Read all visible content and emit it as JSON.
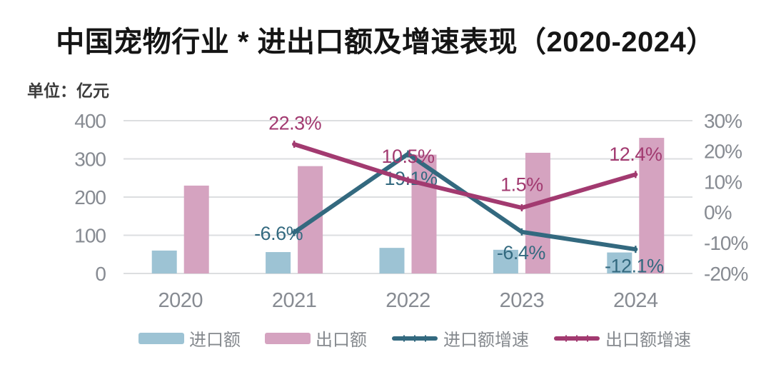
{
  "chart_data": {
    "type": "combo-bar-line",
    "title": "中国宠物行业 * 进出口额及增速表现（2020-2024）",
    "unit_label": "单位：亿元",
    "categories": [
      "2020",
      "2021",
      "2022",
      "2023",
      "2024"
    ],
    "bar_series": [
      {
        "name": "进口额",
        "color": "#9dc3d4",
        "axis": "left",
        "values": [
          60,
          56,
          67,
          62,
          55
        ]
      },
      {
        "name": "出口额",
        "color": "#d5a3c0",
        "axis": "left",
        "values": [
          230,
          281,
          311,
          316,
          355
        ]
      }
    ],
    "line_series": [
      {
        "name": "进口额增速",
        "color": "#33697f",
        "axis": "right",
        "start_index": 1,
        "values": [
          -6.6,
          19.1,
          -6.4,
          -12.1
        ],
        "labels": [
          "-6.6%",
          "19.1%",
          "-6.4%",
          "-12.1%"
        ]
      },
      {
        "name": "出口额增速",
        "color": "#a23a70",
        "axis": "right",
        "start_index": 1,
        "values": [
          22.3,
          10.5,
          1.5,
          12.4
        ],
        "labels": [
          "22.3%",
          "10.5%",
          "1.5%",
          "12.4%"
        ]
      }
    ],
    "left_axis": {
      "min": 0,
      "max": 400,
      "tick_values": [
        0,
        100,
        200,
        300,
        400
      ],
      "tick_labels": [
        "0",
        "100",
        "200",
        "300",
        "400"
      ]
    },
    "right_axis": {
      "min": -20,
      "max": 30,
      "tick_values": [
        -20,
        -10,
        0,
        10,
        20,
        30
      ],
      "tick_labels": [
        "-20%",
        "-10%",
        "0%",
        "10%",
        "20%",
        "30%"
      ]
    },
    "grid": true,
    "legend_position": "bottom"
  },
  "legend": {
    "items": [
      {
        "label": "进口额",
        "swatch": "bar",
        "color": "#9dc3d4"
      },
      {
        "label": "出口额",
        "swatch": "bar",
        "color": "#d5a3c0"
      },
      {
        "label": "进口额增速",
        "swatch": "line",
        "color": "#33697f"
      },
      {
        "label": "出口额增速",
        "swatch": "line",
        "color": "#a23a70"
      }
    ]
  },
  "colors": {
    "grid_line": "#dcdee0",
    "axis_text": "#878b92",
    "title_text": "#151515",
    "unit_text": "#3c3c3c",
    "background": "#ffffff"
  }
}
